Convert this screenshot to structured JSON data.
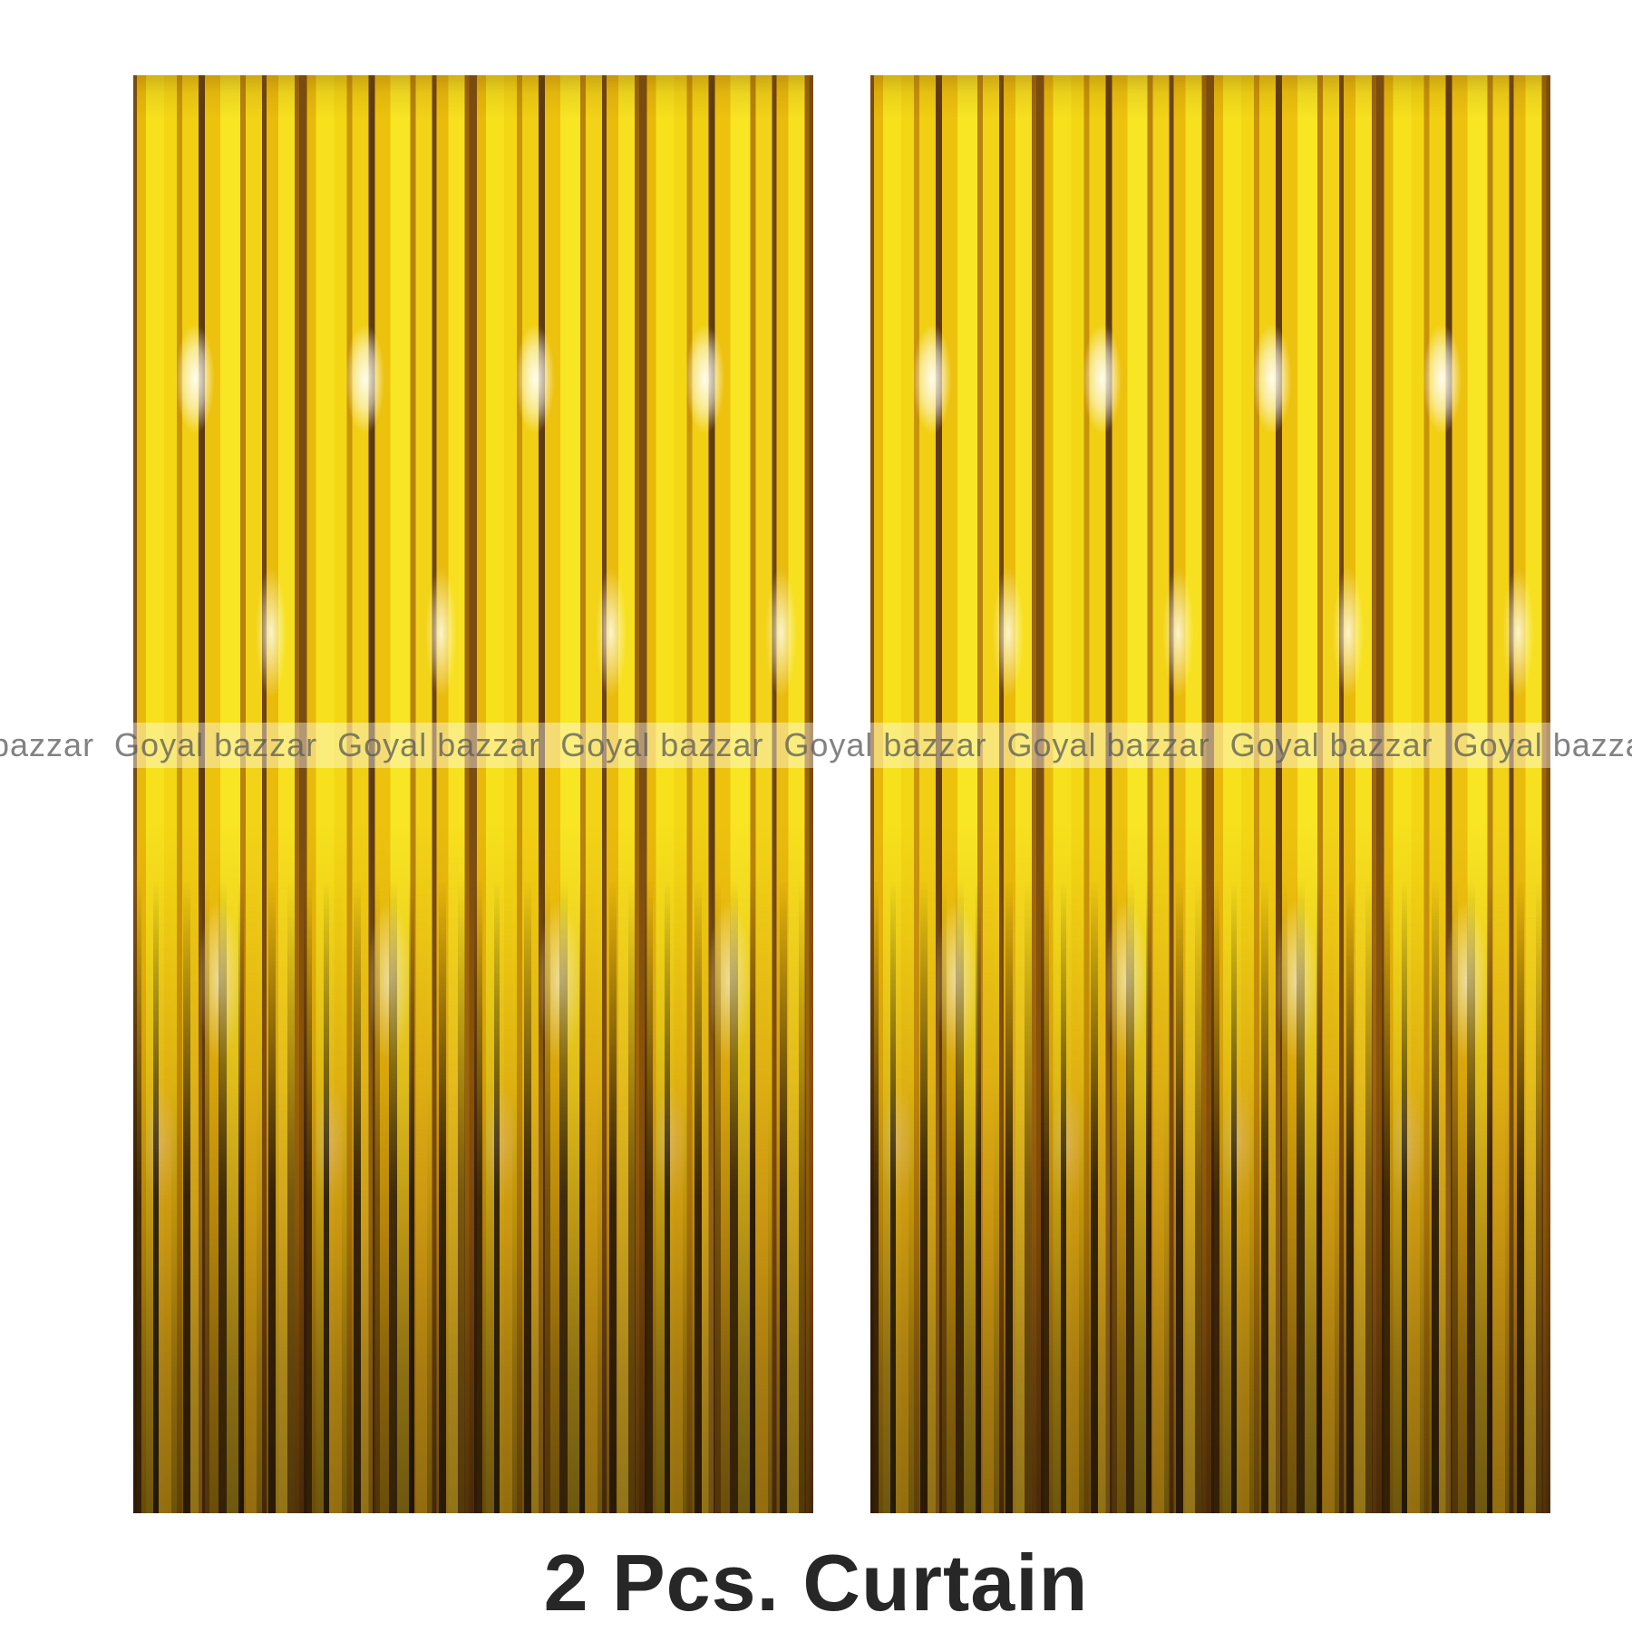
{
  "watermark": {
    "brand": "Goyal bazzar",
    "line": "bazzar  Goyal bazzar  Goyal bazzar  Goyal bazzar  Goyal bazzar  Goyal bazzar  Goyal bazzar  Goyal bazzar  Goyal bazzar",
    "text_color": "#8c8c8c",
    "band_color": "rgba(255,255,255,0.42)"
  },
  "caption": {
    "text": "2 Pcs. Curtain",
    "color": "#272727"
  },
  "colors": {
    "bright_yellow": "#f6e01e",
    "gold": "#e0a90a",
    "amber": "#a96d06",
    "dark_brown": "#4a2c08",
    "highlight": "#fffdf0",
    "background": "#ffffff"
  }
}
